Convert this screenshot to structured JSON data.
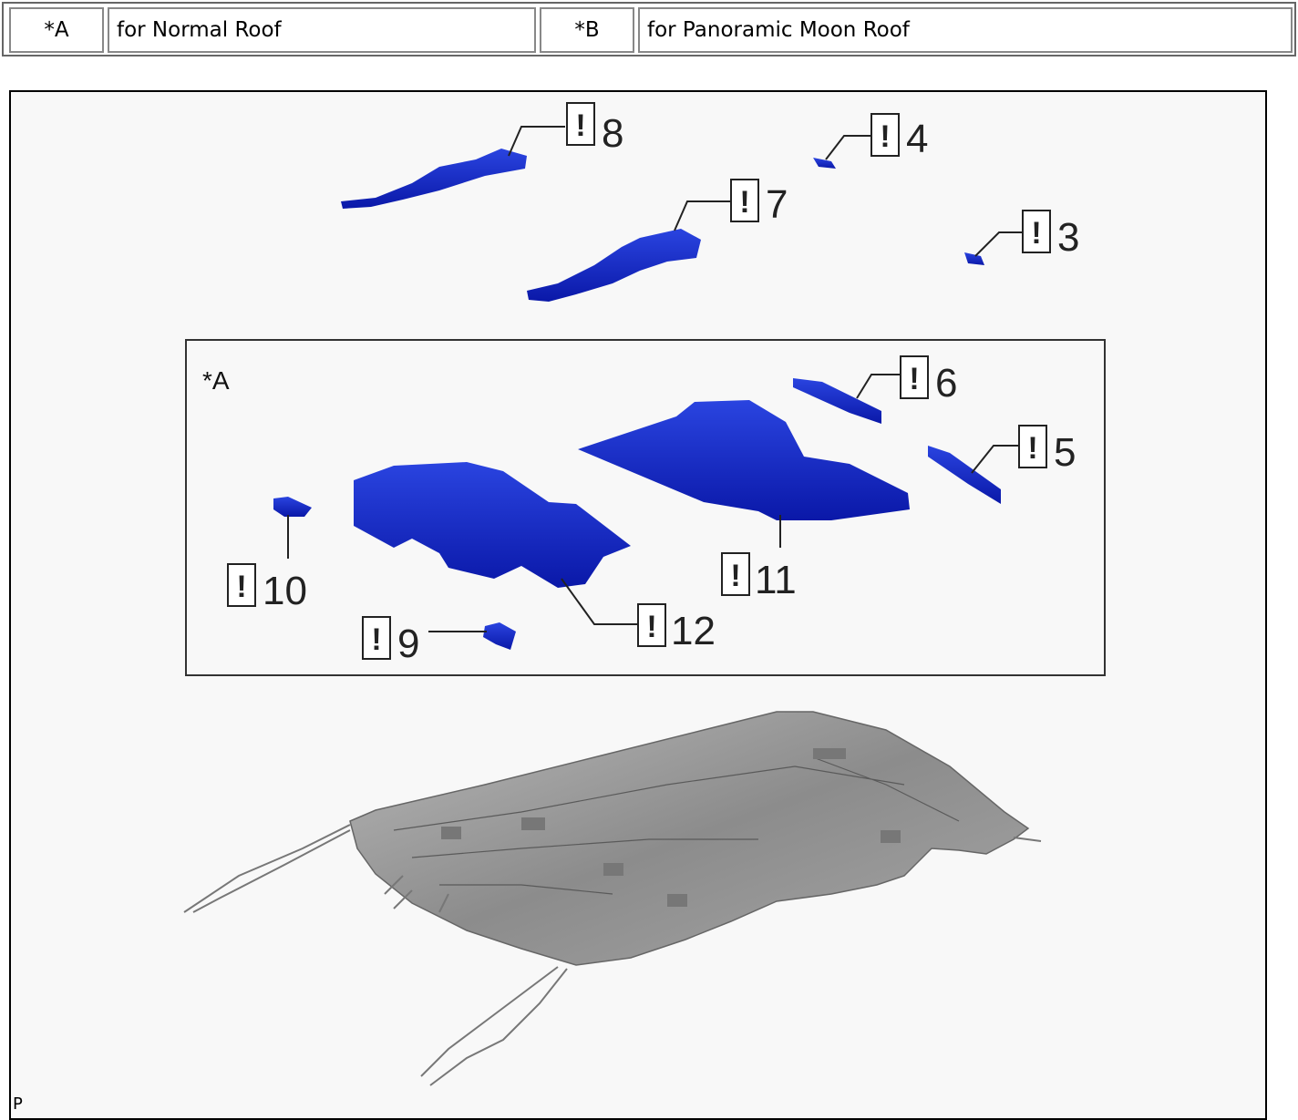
{
  "legend": {
    "a_code": "*A",
    "a_desc": "for Normal Roof",
    "b_code": "*B",
    "b_desc": "for Panoramic Moon Roof"
  },
  "figure": {
    "inset_label": "*A",
    "caution_mark": "!",
    "callouts": {
      "c3": "3",
      "c4": "4",
      "c5": "5",
      "c6": "6",
      "c7": "7",
      "c8": "8",
      "c9": "9",
      "c10": "10",
      "c11": "11",
      "c12": "12"
    },
    "code": "P",
    "part_color": "#1428c8",
    "headliner_color": "#9a9a9a"
  }
}
